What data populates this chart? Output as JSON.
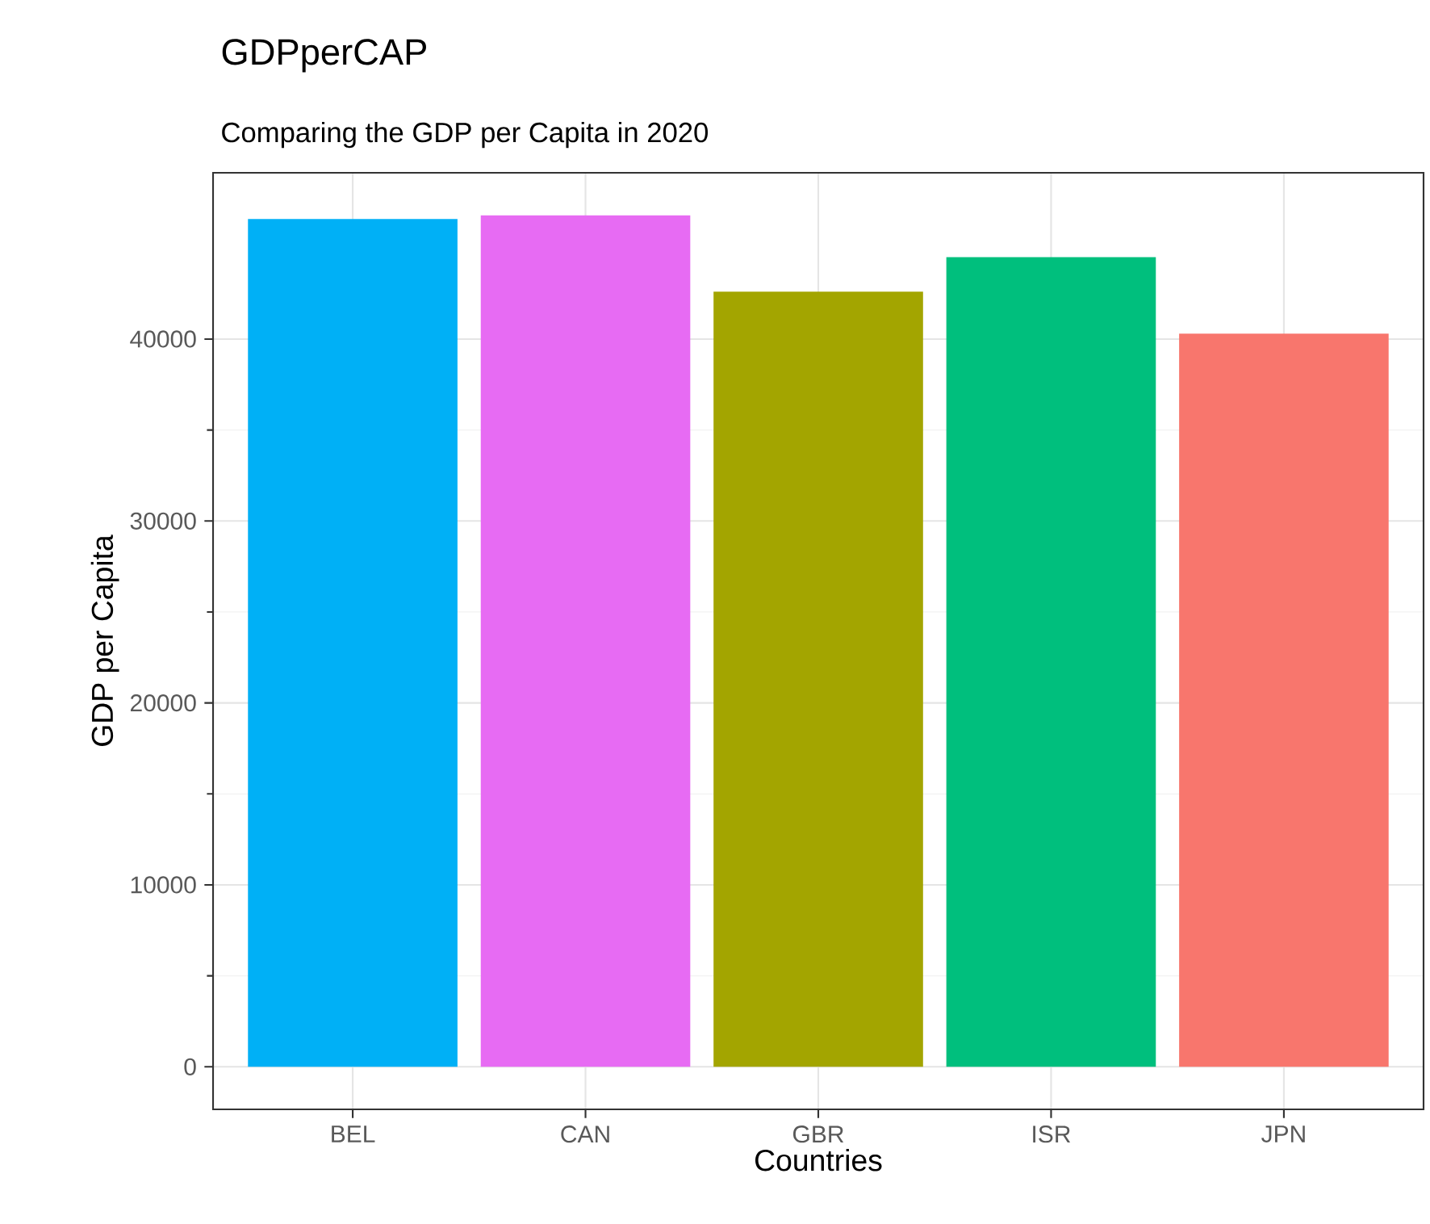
{
  "chart_data": {
    "type": "bar",
    "title": "GDPperCAP",
    "subtitle": "Comparing the GDP per Capita in 2020",
    "xlabel": "Countries",
    "ylabel": "GDP per Capita",
    "categories": [
      "BEL",
      "CAN",
      "GBR",
      "ISR",
      "JPN"
    ],
    "values": [
      46600,
      46800,
      42600,
      44500,
      40300
    ],
    "colors": [
      "#00b0f6",
      "#e76bf3",
      "#a3a500",
      "#00bf7d",
      "#f8766d"
    ],
    "ylim": [
      -2340,
      49140
    ],
    "yticks": [
      0,
      10000,
      20000,
      30000,
      40000
    ],
    "grid": true
  }
}
